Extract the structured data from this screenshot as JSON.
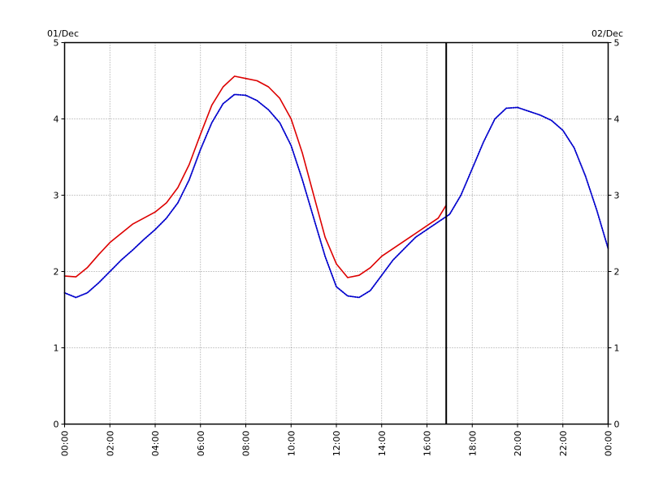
{
  "chart_data": {
    "type": "line",
    "date_start_label": "01/Dec",
    "date_end_label": "02/Dec",
    "x_unit": "hour",
    "xlim": [
      0,
      24
    ],
    "ylim": [
      0,
      5
    ],
    "x_ticks": [
      0,
      2,
      4,
      6,
      8,
      10,
      12,
      14,
      16,
      18,
      20,
      22,
      24
    ],
    "x_tick_labels": [
      "00:00",
      "02:00",
      "04:00",
      "06:00",
      "08:00",
      "10:00",
      "12:00",
      "14:00",
      "16:00",
      "18:00",
      "20:00",
      "22:00",
      "00:00"
    ],
    "y_ticks": [
      0,
      1,
      2,
      3,
      4,
      5
    ],
    "y_tick_labels": [
      "0",
      "1",
      "2",
      "3",
      "4",
      "5"
    ],
    "grid": true,
    "now_marker_x": 16.85,
    "series": [
      {
        "color": "#dd0000",
        "style": "solid",
        "x": [
          0,
          0.5,
          1,
          1.5,
          2,
          2.5,
          3,
          3.5,
          4,
          4.5,
          5,
          5.5,
          6,
          6.5,
          7,
          7.5,
          8,
          8.5,
          9,
          9.5,
          10,
          10.5,
          11,
          11.5,
          12,
          12.5,
          13,
          13.5,
          14,
          14.5,
          15,
          15.5,
          16,
          16.5,
          16.85
        ],
        "y": [
          1.94,
          1.93,
          2.05,
          2.22,
          2.38,
          2.5,
          2.62,
          2.7,
          2.78,
          2.9,
          3.1,
          3.4,
          3.8,
          4.18,
          4.42,
          4.56,
          4.53,
          4.5,
          4.42,
          4.27,
          4.0,
          3.55,
          3.0,
          2.45,
          2.1,
          1.92,
          1.95,
          2.05,
          2.2,
          2.3,
          2.4,
          2.5,
          2.6,
          2.7,
          2.87
        ]
      },
      {
        "color": "#0000cc",
        "style": "dotted",
        "x": [
          0,
          0.5,
          1,
          1.5,
          2,
          2.5,
          3,
          3.5,
          4,
          4.5,
          5,
          5.5,
          6,
          6.5,
          7,
          7.5,
          8,
          8.5,
          9,
          9.5,
          10,
          10.5,
          11,
          11.5,
          12,
          12.5,
          13,
          13.5,
          14,
          14.5,
          15,
          15.5,
          16,
          16.5,
          17,
          17.5,
          18,
          18.5,
          19,
          19.5,
          20,
          20.5,
          21,
          21.5,
          22,
          22.5,
          23,
          23.5,
          24
        ],
        "y": [
          1.72,
          1.66,
          1.72,
          1.85,
          2.0,
          2.15,
          2.28,
          2.42,
          2.55,
          2.7,
          2.9,
          3.2,
          3.6,
          3.95,
          4.2,
          4.32,
          4.31,
          4.24,
          4.12,
          3.95,
          3.65,
          3.2,
          2.7,
          2.2,
          1.8,
          1.68,
          1.66,
          1.75,
          1.95,
          2.15,
          2.3,
          2.45,
          2.55,
          2.65,
          2.75,
          3.0,
          3.35,
          3.7,
          4.0,
          4.14,
          4.15,
          4.1,
          4.05,
          3.98,
          3.85,
          3.62,
          3.25,
          2.8,
          2.3
        ]
      }
    ]
  }
}
